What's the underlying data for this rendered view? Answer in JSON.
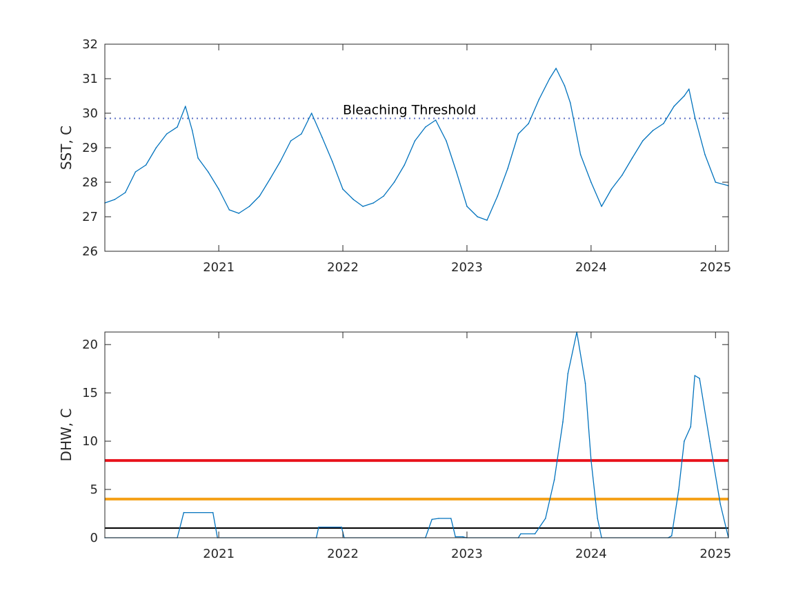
{
  "chart_data": [
    {
      "type": "line",
      "ylabel": "SST, C",
      "xlabel": "",
      "title": "",
      "xlim": [
        "2020-02-01",
        "2025-02-08"
      ],
      "ylim": [
        26,
        32
      ],
      "yticks": [
        26,
        27,
        28,
        29,
        30,
        31,
        32
      ],
      "xticks": [
        {
          "date": "2021-01-01",
          "label": "2021"
        },
        {
          "date": "2022-01-01",
          "label": "2022"
        },
        {
          "date": "2023-01-01",
          "label": "2023"
        },
        {
          "date": "2024-01-01",
          "label": "2024"
        },
        {
          "date": "2025-01-01",
          "label": "2025"
        }
      ],
      "grid": false,
      "threshold": {
        "value": 29.85,
        "label": "Bleaching Threshold",
        "style": "dotted",
        "color": "#5b6fc4"
      },
      "series": [
        {
          "color": "#0072BD",
          "x": [
            "2020-02-01",
            "2020-03-01",
            "2020-04-01",
            "2020-05-01",
            "2020-06-01",
            "2020-07-01",
            "2020-08-01",
            "2020-09-01",
            "2020-09-25",
            "2020-10-15",
            "2020-11-01",
            "2020-12-01",
            "2021-01-01",
            "2021-02-01",
            "2021-03-01",
            "2021-04-01",
            "2021-05-01",
            "2021-06-01",
            "2021-07-01",
            "2021-08-01",
            "2021-09-01",
            "2021-10-01",
            "2021-11-01",
            "2021-12-01",
            "2022-01-01",
            "2022-02-01",
            "2022-03-01",
            "2022-04-01",
            "2022-05-01",
            "2022-06-01",
            "2022-07-01",
            "2022-08-01",
            "2022-09-01",
            "2022-10-01",
            "2022-11-01",
            "2022-12-01",
            "2023-01-01",
            "2023-02-01",
            "2023-03-01",
            "2023-04-01",
            "2023-05-01",
            "2023-06-01",
            "2023-07-01",
            "2023-08-01",
            "2023-09-01",
            "2023-09-20",
            "2023-10-15",
            "2023-11-01",
            "2023-12-01",
            "2024-01-01",
            "2024-02-01",
            "2024-03-01",
            "2024-04-01",
            "2024-05-01",
            "2024-06-01",
            "2024-07-01",
            "2024-08-01",
            "2024-09-01",
            "2024-10-01",
            "2024-10-15",
            "2024-11-01",
            "2024-12-01",
            "2025-01-01",
            "2025-02-08"
          ],
          "values": [
            27.4,
            27.5,
            27.7,
            28.3,
            28.5,
            29.0,
            29.4,
            29.6,
            30.2,
            29.5,
            28.7,
            28.3,
            27.8,
            27.2,
            27.1,
            27.3,
            27.6,
            28.1,
            28.6,
            29.2,
            29.4,
            30.0,
            29.3,
            28.6,
            27.8,
            27.5,
            27.3,
            27.4,
            27.6,
            28.0,
            28.5,
            29.2,
            29.6,
            29.8,
            29.2,
            28.3,
            27.3,
            27.0,
            26.9,
            27.6,
            28.4,
            29.4,
            29.7,
            30.4,
            31.0,
            31.3,
            30.8,
            30.3,
            28.8,
            28.0,
            27.3,
            27.8,
            28.2,
            28.7,
            29.2,
            29.5,
            29.7,
            30.2,
            30.5,
            30.7,
            29.9,
            28.8,
            28.0,
            27.9
          ]
        }
      ]
    },
    {
      "type": "line",
      "ylabel": "DHW, C",
      "xlabel": "",
      "title": "",
      "xlim": [
        "2020-02-01",
        "2025-02-08"
      ],
      "ylim": [
        0,
        21.3
      ],
      "yticks": [
        0,
        5,
        10,
        15,
        20
      ],
      "xticks": [
        {
          "date": "2021-01-01",
          "label": "2021"
        },
        {
          "date": "2022-01-01",
          "label": "2022"
        },
        {
          "date": "2023-01-01",
          "label": "2023"
        },
        {
          "date": "2024-01-01",
          "label": "2024"
        },
        {
          "date": "2025-01-01",
          "label": "2025"
        }
      ],
      "grid": false,
      "reference_lines": [
        {
          "value": 8,
          "color": "#e8131c"
        },
        {
          "value": 4,
          "color": "#f5a21b"
        },
        {
          "value": 1,
          "color": "#000000"
        }
      ],
      "series": [
        {
          "color": "#0072BD",
          "x": [
            "2020-02-01",
            "2020-09-01",
            "2020-09-20",
            "2020-12-15",
            "2020-12-28",
            "2021-10-15",
            "2021-10-22",
            "2021-12-28",
            "2022-01-05",
            "2022-09-01",
            "2022-09-20",
            "2022-10-10",
            "2022-11-15",
            "2022-11-28",
            "2022-12-20",
            "2022-12-31",
            "2023-06-01",
            "2023-06-08",
            "2023-07-20",
            "2023-08-20",
            "2023-09-15",
            "2023-10-10",
            "2023-10-25",
            "2023-11-20",
            "2023-12-15",
            "2024-01-01",
            "2024-01-20",
            "2024-02-01",
            "2024-08-15",
            "2024-08-25",
            "2024-09-15",
            "2024-10-01",
            "2024-10-20",
            "2024-11-01",
            "2024-11-15",
            "2024-12-15",
            "2025-01-15",
            "2025-02-08"
          ],
          "values": [
            0,
            0,
            2.6,
            2.6,
            0,
            0,
            1.1,
            1.1,
            0,
            0,
            1.9,
            2.0,
            2.0,
            0.1,
            0.1,
            0,
            0,
            0.4,
            0.4,
            2.0,
            6.0,
            12.0,
            17.0,
            21.3,
            16.0,
            8.0,
            2.0,
            0,
            0,
            0.2,
            5.0,
            10.0,
            11.5,
            16.8,
            16.5,
            10.0,
            3.5,
            0
          ]
        }
      ]
    }
  ]
}
